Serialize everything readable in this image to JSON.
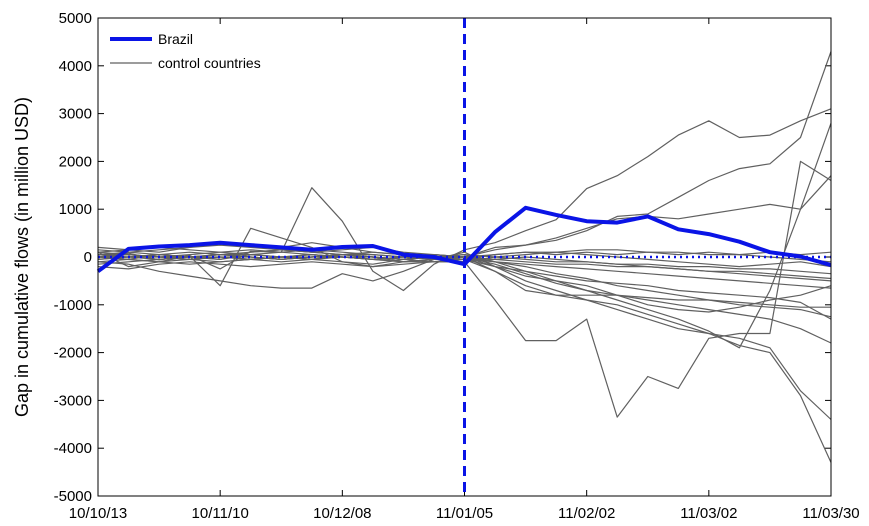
{
  "chart_data": {
    "type": "line",
    "ylabel": "Gap in cumulative flows (in million USD)",
    "xlabel": "",
    "title": "",
    "ylim": [
      -5000,
      5000
    ],
    "yticks": [
      -5000,
      -4000,
      -3000,
      -2000,
      -1000,
      0,
      1000,
      2000,
      3000,
      4000,
      5000
    ],
    "xtick_labels": [
      "10/10/13",
      "10/11/10",
      "10/12/08",
      "11/01/05",
      "11/02/02",
      "11/03/02",
      "11/03/30"
    ],
    "xtick_weeks": [
      0,
      4,
      8,
      12,
      16,
      20,
      24
    ],
    "treatment_week": 12,
    "legend": {
      "position": "top-left",
      "entries": [
        "Brazil",
        "control countries"
      ]
    },
    "colors": {
      "brazil": "#0a14e6",
      "control": "#606060",
      "zero_line": "#0a14e6",
      "treatment": "#0a14e6"
    },
    "series": [
      {
        "name": "Brazil",
        "x": [
          0,
          1,
          2,
          3,
          4,
          5,
          6,
          7,
          8,
          9,
          10,
          11,
          12,
          13,
          14,
          15,
          16,
          17,
          18,
          19,
          20,
          21,
          22,
          23,
          24
        ],
        "values": [
          -300,
          170,
          220,
          250,
          300,
          250,
          200,
          150,
          210,
          230,
          50,
          0,
          -150,
          520,
          1030,
          880,
          750,
          720,
          850,
          580,
          480,
          320,
          100,
          10,
          -170
        ]
      },
      {
        "x": [
          0,
          1,
          2,
          3,
          4,
          5,
          6,
          7,
          8,
          9,
          10,
          11,
          12,
          13,
          14,
          15,
          16,
          17,
          18,
          19,
          20,
          21,
          22,
          23,
          24
        ],
        "values": [
          0,
          80,
          -60,
          30,
          -250,
          120,
          100,
          1450,
          750,
          -300,
          -700,
          -150,
          150,
          300,
          550,
          780,
          1430,
          1700,
          2100,
          2550,
          2850,
          2500,
          2550,
          2850,
          3100
        ]
      },
      {
        "x": [
          0,
          1,
          2,
          3,
          4,
          5,
          6,
          7,
          8,
          9,
          10,
          11,
          12,
          13,
          14,
          15,
          16,
          17,
          18,
          19,
          20,
          21,
          22,
          23,
          24
        ],
        "values": [
          100,
          -200,
          -100,
          20,
          -600,
          600,
          400,
          200,
          -100,
          -200,
          -100,
          -100,
          -100,
          -900,
          -1750,
          -1750,
          -1300,
          -3350,
          -2500,
          -2750,
          -1700,
          -1600,
          -1600,
          2000,
          1600
        ]
      },
      {
        "x": [
          0,
          1,
          2,
          3,
          4,
          5,
          6,
          7,
          8,
          9,
          10,
          11,
          12,
          13,
          14,
          15,
          16,
          17,
          18,
          19,
          20,
          21,
          22,
          23,
          24
        ],
        "values": [
          -100,
          -150,
          -300,
          -400,
          -500,
          -600,
          -650,
          -650,
          -350,
          -500,
          -300,
          -50,
          0,
          200,
          250,
          350,
          550,
          850,
          900,
          1250,
          1600,
          1850,
          1950,
          2500,
          4300
        ]
      },
      {
        "x": [
          0,
          1,
          2,
          3,
          4,
          5,
          6,
          7,
          8,
          9,
          10,
          11,
          12,
          13,
          14,
          15,
          16,
          17,
          18,
          19,
          20,
          21,
          22,
          23,
          24
        ],
        "values": [
          50,
          100,
          150,
          200,
          250,
          200,
          150,
          100,
          150,
          200,
          100,
          50,
          0,
          -100,
          -300,
          -500,
          -700,
          -900,
          -1100,
          -1300,
          -1550,
          -1900,
          -700,
          1000,
          2800
        ]
      },
      {
        "x": [
          0,
          1,
          2,
          3,
          4,
          5,
          6,
          7,
          8,
          9,
          10,
          11,
          12,
          13,
          14,
          15,
          16,
          17,
          18,
          19,
          20,
          21,
          22,
          23,
          24
        ],
        "values": [
          0,
          -50,
          -100,
          -150,
          -100,
          -50,
          0,
          -50,
          -100,
          -150,
          -50,
          0,
          -50,
          -300,
          -600,
          -800,
          -900,
          -1100,
          -1300,
          -1500,
          -1600,
          -1700,
          -1900,
          -2800,
          -3400
        ]
      },
      {
        "x": [
          0,
          1,
          2,
          3,
          4,
          5,
          6,
          7,
          8,
          9,
          10,
          11,
          12,
          13,
          14,
          15,
          16,
          17,
          18,
          19,
          20,
          21,
          22,
          23,
          24
        ],
        "values": [
          150,
          100,
          50,
          0,
          -50,
          100,
          150,
          100,
          50,
          0,
          -100,
          -50,
          100,
          -200,
          -500,
          -700,
          -900,
          -1000,
          -1200,
          -1400,
          -1600,
          -1850,
          -2000,
          -2900,
          -4300
        ]
      },
      {
        "x": [
          0,
          1,
          2,
          3,
          4,
          5,
          6,
          7,
          8,
          9,
          10,
          11,
          12,
          13,
          14,
          15,
          16,
          17,
          18,
          19,
          20,
          21,
          22,
          23,
          24
        ],
        "values": [
          -50,
          0,
          50,
          100,
          50,
          0,
          -50,
          0,
          50,
          100,
          50,
          0,
          0,
          150,
          250,
          400,
          600,
          800,
          850,
          800,
          900,
          1000,
          1100,
          1000,
          1700
        ]
      },
      {
        "x": [
          0,
          1,
          2,
          3,
          4,
          5,
          6,
          7,
          8,
          9,
          10,
          11,
          12,
          13,
          14,
          15,
          16,
          17,
          18,
          19,
          20,
          21,
          22,
          23,
          24
        ],
        "values": [
          0,
          50,
          0,
          -50,
          -100,
          -50,
          0,
          50,
          0,
          -50,
          -100,
          -50,
          0,
          -200,
          -400,
          -500,
          -600,
          -800,
          -900,
          -1000,
          -1100,
          -1200,
          -1300,
          -1500,
          -1800
        ]
      },
      {
        "x": [
          0,
          1,
          2,
          3,
          4,
          5,
          6,
          7,
          8,
          9,
          10,
          11,
          12,
          13,
          14,
          15,
          16,
          17,
          18,
          19,
          20,
          21,
          22,
          23,
          24
        ],
        "values": [
          100,
          50,
          0,
          50,
          100,
          150,
          100,
          50,
          0,
          -50,
          0,
          50,
          0,
          -150,
          -350,
          -550,
          -700,
          -800,
          -1000,
          -1100,
          -1150,
          -1050,
          -900,
          -800,
          -600
        ]
      },
      {
        "x": [
          0,
          1,
          2,
          3,
          4,
          5,
          6,
          7,
          8,
          9,
          10,
          11,
          12,
          13,
          14,
          15,
          16,
          17,
          18,
          19,
          20,
          21,
          22,
          23,
          24
        ],
        "values": [
          -100,
          -50,
          -100,
          -50,
          0,
          -50,
          -100,
          -50,
          0,
          -50,
          -100,
          -50,
          -50,
          -200,
          -300,
          -400,
          -500,
          -550,
          -600,
          -700,
          -750,
          -800,
          -850,
          -950,
          -1300
        ]
      },
      {
        "x": [
          0,
          1,
          2,
          3,
          4,
          5,
          6,
          7,
          8,
          9,
          10,
          11,
          12,
          13,
          14,
          15,
          16,
          17,
          18,
          19,
          20,
          21,
          22,
          23,
          24
        ],
        "values": [
          50,
          0,
          -50,
          0,
          50,
          0,
          -50,
          0,
          50,
          0,
          -50,
          0,
          50,
          -100,
          -200,
          -350,
          -450,
          -600,
          -700,
          -800,
          -900,
          -1000,
          -1050,
          -1100,
          -1250
        ]
      },
      {
        "x": [
          0,
          1,
          2,
          3,
          4,
          5,
          6,
          7,
          8,
          9,
          10,
          11,
          12,
          13,
          14,
          15,
          16,
          17,
          18,
          19,
          20,
          21,
          22,
          23,
          24
        ],
        "values": [
          -150,
          -100,
          -50,
          0,
          50,
          100,
          150,
          100,
          50,
          0,
          -50,
          -100,
          -50,
          -100,
          -150,
          -200,
          -250,
          -300,
          -350,
          -400,
          -450,
          -500,
          -550,
          -600,
          -650
        ]
      },
      {
        "x": [
          0,
          1,
          2,
          3,
          4,
          5,
          6,
          7,
          8,
          9,
          10,
          11,
          12,
          13,
          14,
          15,
          16,
          17,
          18,
          19,
          20,
          21,
          22,
          23,
          24
        ],
        "values": [
          0,
          0,
          50,
          0,
          0,
          -50,
          0,
          50,
          0,
          0,
          -50,
          0,
          0,
          -50,
          -100,
          -150,
          -150,
          -200,
          -200,
          -250,
          -300,
          -300,
          -350,
          -400,
          -450
        ]
      },
      {
        "x": [
          0,
          1,
          2,
          3,
          4,
          5,
          6,
          7,
          8,
          9,
          10,
          11,
          12,
          13,
          14,
          15,
          16,
          17,
          18,
          19,
          20,
          21,
          22,
          23,
          24
        ],
        "values": [
          50,
          50,
          0,
          0,
          50,
          50,
          0,
          0,
          50,
          50,
          0,
          0,
          50,
          0,
          -50,
          -100,
          -100,
          -150,
          -150,
          -200,
          -200,
          -250,
          -250,
          -300,
          -350
        ]
      },
      {
        "x": [
          0,
          1,
          2,
          3,
          4,
          5,
          6,
          7,
          8,
          9,
          10,
          11,
          12,
          13,
          14,
          15,
          16,
          17,
          18,
          19,
          20,
          21,
          22,
          23,
          24
        ],
        "values": [
          -50,
          0,
          0,
          -50,
          0,
          0,
          -50,
          0,
          0,
          -50,
          0,
          0,
          -50,
          50,
          100,
          100,
          150,
          150,
          100,
          100,
          50,
          50,
          0,
          -50,
          -100
        ]
      },
      {
        "x": [
          0,
          1,
          2,
          3,
          4,
          5,
          6,
          7,
          8,
          9,
          10,
          11,
          12,
          13,
          14,
          15,
          16,
          17,
          18,
          19,
          20,
          21,
          22,
          23,
          24
        ],
        "values": [
          200,
          150,
          100,
          200,
          300,
          250,
          200,
          300,
          200,
          100,
          50,
          0,
          0,
          -300,
          -700,
          -800,
          -800,
          -800,
          -850,
          -900,
          -900,
          -950,
          -1000,
          -1050,
          -1050
        ]
      },
      {
        "x": [
          0,
          1,
          2,
          3,
          4,
          5,
          6,
          7,
          8,
          9,
          10,
          11,
          12,
          13,
          14,
          15,
          16,
          17,
          18,
          19,
          20,
          21,
          22,
          23,
          24
        ],
        "values": [
          0,
          -50,
          50,
          0,
          -50,
          50,
          0,
          -50,
          50,
          0,
          -50,
          50,
          0,
          50,
          100,
          50,
          100,
          50,
          100,
          50,
          100,
          50,
          100,
          50,
          100
        ]
      },
      {
        "x": [
          0,
          1,
          2,
          3,
          4,
          5,
          6,
          7,
          8,
          9,
          10,
          11,
          12,
          13,
          14,
          15,
          16,
          17,
          18,
          19,
          20,
          21,
          22,
          23,
          24
        ],
        "values": [
          -200,
          -250,
          -150,
          -100,
          -150,
          -200,
          -150,
          -100,
          -150,
          -200,
          -150,
          -100,
          -100,
          -50,
          0,
          -50,
          -100,
          -150,
          -200,
          -250,
          -300,
          -350,
          -400,
          -450,
          -500
        ]
      },
      {
        "x": [
          0,
          1,
          2,
          3,
          4,
          5,
          6,
          7,
          8,
          9,
          10,
          11,
          12,
          13,
          14,
          15,
          16,
          17,
          18,
          19,
          20,
          21,
          22,
          23,
          24
        ],
        "values": [
          100,
          150,
          200,
          150,
          100,
          50,
          100,
          150,
          100,
          50,
          0,
          -50,
          -100,
          0,
          50,
          100,
          50,
          0,
          -50,
          -100,
          -150,
          -200,
          -150,
          -100,
          -200
        ]
      }
    ]
  }
}
